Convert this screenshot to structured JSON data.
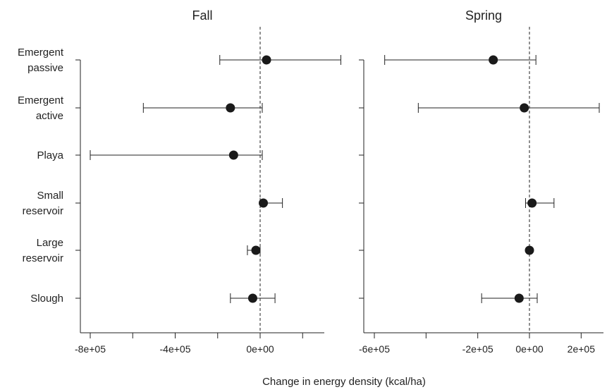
{
  "chart_data": {
    "type": "scatter",
    "subtype": "forest-plot",
    "xlabel": "Change in energy density (kcal/ha)",
    "categories": [
      "Emergent passive",
      "Emergent active",
      "Playa",
      "Small reservoir",
      "Large reservoir",
      "Slough"
    ],
    "category_label_lines": [
      [
        "Emergent",
        "passive"
      ],
      [
        "Emergent",
        "active"
      ],
      [
        "Playa"
      ],
      [
        "Small",
        "reservoir"
      ],
      [
        "Large",
        "reservoir"
      ],
      [
        "Slough"
      ]
    ],
    "reference_line_x": 0,
    "panels": [
      {
        "title": "Fall",
        "xlim": [
          -820000,
          500000
        ],
        "xticks": [
          -800000,
          -400000,
          0
        ],
        "xtick_labels": [
          "-8e+05",
          "-4e+05",
          "0e+00"
        ],
        "minor_ticks": [
          -600000,
          -200000,
          200000
        ],
        "points": [
          {
            "category": "Emergent passive",
            "estimate": 30000,
            "lower": -190000,
            "upper": 380000
          },
          {
            "category": "Emergent active",
            "estimate": -140000,
            "lower": -550000,
            "upper": 10000
          },
          {
            "category": "Playa",
            "estimate": -125000,
            "lower": -800000,
            "upper": 10000
          },
          {
            "category": "Small reservoir",
            "estimate": 15000,
            "lower": 0,
            "upper": 105000
          },
          {
            "category": "Large reservoir",
            "estimate": -20000,
            "lower": -60000,
            "upper": 0
          },
          {
            "category": "Slough",
            "estimate": -35000,
            "lower": -140000,
            "upper": 70000
          }
        ]
      },
      {
        "title": "Spring",
        "xlim": [
          -640000,
          310000
        ],
        "xticks": [
          -600000,
          -200000,
          0,
          200000
        ],
        "xtick_labels": [
          "-6e+05",
          "-2e+05",
          "0e+00",
          "2e+05"
        ],
        "minor_ticks": [
          -400000
        ],
        "points": [
          {
            "category": "Emergent passive",
            "estimate": -140000,
            "lower": -560000,
            "upper": 25000
          },
          {
            "category": "Emergent active",
            "estimate": -20000,
            "lower": -430000,
            "upper": 270000
          },
          {
            "category": "Playa",
            "estimate": null,
            "lower": null,
            "upper": null
          },
          {
            "category": "Small reservoir",
            "estimate": 10000,
            "lower": -15000,
            "upper": 95000
          },
          {
            "category": "Large reservoir",
            "estimate": 0,
            "lower": null,
            "upper": null
          },
          {
            "category": "Slough",
            "estimate": -40000,
            "lower": -185000,
            "upper": 30000
          }
        ]
      }
    ]
  }
}
